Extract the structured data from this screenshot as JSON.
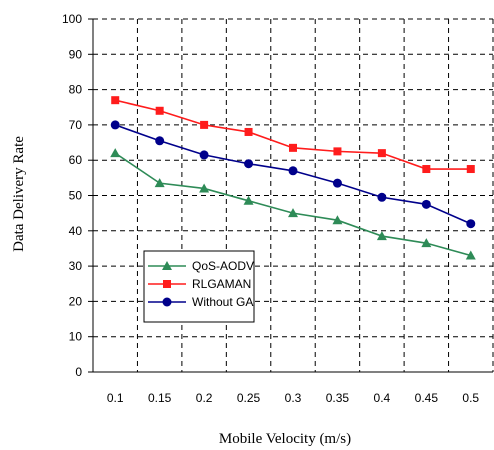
{
  "chart_data": {
    "type": "line",
    "title": "",
    "xlabel": "Mobile Velocity (m/s)",
    "ylabel": "Data Delivery Rate",
    "categories": [
      "0.1",
      "0.15",
      "0.2",
      "0.25",
      "0.3",
      "0.35",
      "0.4",
      "0.45",
      "0.5"
    ],
    "ylim": [
      0,
      100
    ],
    "yticks": [
      "0",
      "10",
      "20",
      "30",
      "40",
      "50",
      "60",
      "70",
      "80",
      "90",
      "100"
    ],
    "grid": true,
    "legend_position": "bottom-left",
    "series": [
      {
        "name": "QoS-AODV",
        "color": "#2E8B57",
        "marker": "triangle",
        "values": [
          62,
          53.5,
          52,
          48.5,
          45,
          43,
          38.5,
          36.5,
          33
        ]
      },
      {
        "name": "RLGAMAN",
        "color": "#FF1C1C",
        "marker": "square",
        "values": [
          77,
          74,
          70,
          68,
          63.5,
          62.5,
          62,
          57.5,
          57.5
        ]
      },
      {
        "name": "Without GA",
        "color": "#00008B",
        "marker": "circle",
        "values": [
          70,
          65.5,
          61.5,
          59,
          57,
          53.5,
          49.5,
          47.5,
          42
        ]
      }
    ]
  }
}
